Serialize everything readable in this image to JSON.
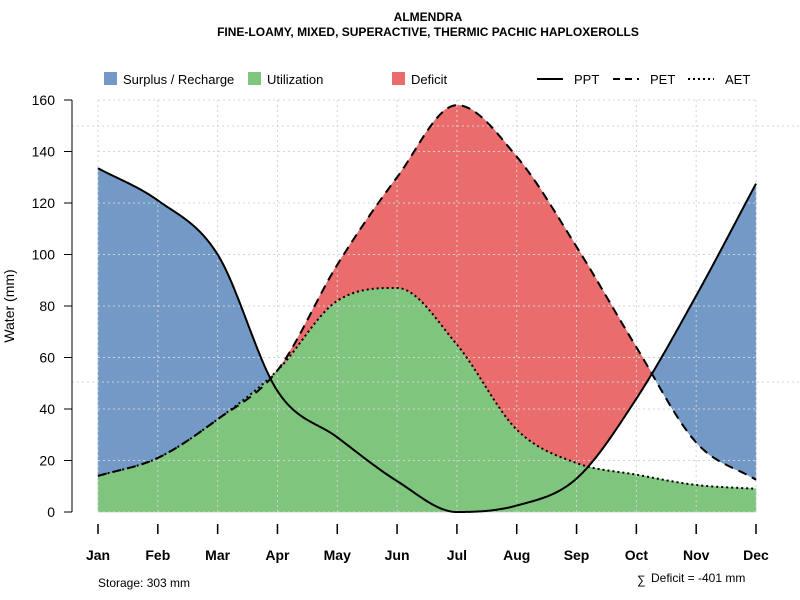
{
  "chart_data": {
    "type": "area",
    "title": "ALMENDRA",
    "subtitle": "FINE-LOAMY, MIXED, SUPERACTIVE, THERMIC PACHIC HAPLOXEROLLS",
    "xlabel": "",
    "ylabel": "Water (mm)",
    "ylim": [
      0,
      160
    ],
    "yticks": [
      0,
      20,
      40,
      60,
      80,
      100,
      120,
      140,
      160
    ],
    "grid": true,
    "legend_position": "top",
    "categories": [
      "Jan",
      "Feb",
      "Mar",
      "Apr",
      "May",
      "Jun",
      "Jul",
      "Aug",
      "Sep",
      "Oct",
      "Nov",
      "Dec"
    ],
    "series": [
      {
        "name": "PPT",
        "style": "solid",
        "values": [
          133.5,
          121,
          100,
          47,
          29,
          12,
          0,
          2.5,
          13,
          44,
          84,
          127.5
        ]
      },
      {
        "name": "PET",
        "style": "dashed",
        "values": [
          14,
          21,
          36,
          55,
          96,
          130,
          158,
          138,
          103,
          64,
          27,
          12.5
        ]
      },
      {
        "name": "AET",
        "style": "dotted",
        "values": [
          14,
          21,
          36,
          55,
          82,
          87,
          65,
          32,
          19,
          14.5,
          10.5,
          9
        ]
      }
    ],
    "fills": [
      {
        "name": "Surplus / Recharge",
        "color": "#7399c6"
      },
      {
        "name": "Utilization",
        "color": "#80c57d"
      },
      {
        "name": "Deficit",
        "color": "#eb6c6c"
      }
    ],
    "legend": {
      "surplus": "Surplus / Recharge",
      "utilization": "Utilization",
      "deficit": "Deficit",
      "ppt": "PPT",
      "pet": "PET",
      "aet": "AET"
    },
    "annotations": {
      "storage": "Storage: 303 mm",
      "deficit_symbol": "∑",
      "deficit_total": "Deficit = -401 mm"
    }
  }
}
